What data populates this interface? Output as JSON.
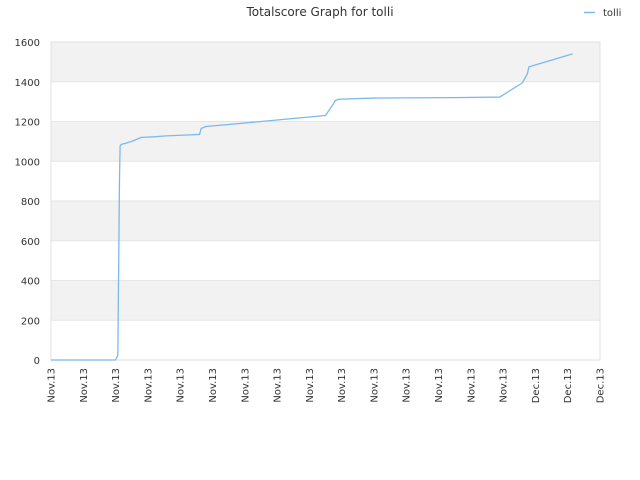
{
  "chart_data": {
    "type": "line",
    "title": "Totalscore Graph for tolli",
    "xlabel": "",
    "ylabel": "",
    "legend": {
      "placement": "top-right"
    },
    "grid": true,
    "ylim": [
      0,
      1600
    ],
    "yticks": [
      0,
      200,
      400,
      600,
      800,
      1000,
      1200,
      1400,
      1600
    ],
    "xlim": [
      0,
      17
    ],
    "xtick_labels": [
      "Nov.13",
      "Nov.13",
      "Nov.13",
      "Nov.13",
      "Nov.13",
      "Nov.13",
      "Nov.13",
      "Nov.13",
      "Nov.13",
      "Nov.13",
      "Nov.13",
      "Nov.13",
      "Nov.13",
      "Nov.13",
      "Nov.13",
      "Dec.13",
      "Dec.13",
      "Dec.13"
    ],
    "series": [
      {
        "name": "tolli",
        "color": "#7db8ec",
        "x": [
          0,
          2.0,
          2.07,
          2.08,
          2.1,
          2.12,
          2.14,
          2.15,
          2.18,
          2.3,
          2.5,
          2.8,
          3.2,
          3.5,
          4.2,
          4.6,
          4.65,
          4.8,
          5.5,
          6.5,
          7.5,
          8.5,
          8.75,
          8.8,
          8.9,
          10.0,
          12.5,
          13.9,
          14.6,
          14.75,
          14.8,
          14.9,
          16.15
        ],
        "y": [
          0,
          0,
          25,
          200,
          550,
          900,
          1075,
          1080,
          1085,
          1090,
          1100,
          1120,
          1123,
          1127,
          1132,
          1135,
          1165,
          1175,
          1185,
          1200,
          1215,
          1230,
          1290,
          1305,
          1312,
          1318,
          1320,
          1323,
          1395,
          1440,
          1475,
          1480,
          1540
        ]
      }
    ]
  }
}
